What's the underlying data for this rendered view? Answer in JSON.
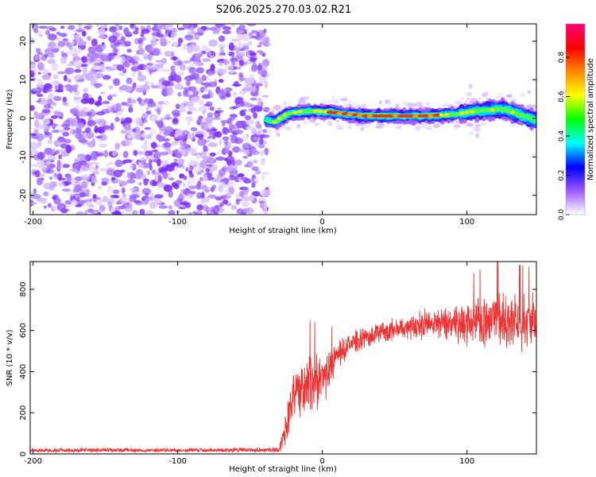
{
  "figure_title": "S206.2025.270.03.02.R21",
  "chart_data": [
    {
      "type": "heatmap",
      "title": "S206.2025.270.03.02.R21",
      "xlabel": "Height of straight line (km)",
      "ylabel": "Frequency (Hz)",
      "xlim": [
        -202,
        148
      ],
      "ylim": [
        -25,
        24.5
      ],
      "xticks": [
        -200,
        -100,
        0,
        100
      ],
      "yticks": [
        -20,
        -10,
        0,
        10,
        20
      ],
      "xtick_labels": [
        "-200",
        "-100",
        "0",
        "100"
      ],
      "ytick_labels": [
        "-20",
        "-10",
        "0",
        "10",
        "20"
      ],
      "noise_region_x": [
        -202,
        -38
      ],
      "signal_onset_x": -38,
      "signal_band_frequency_hz": 0.5,
      "signal_band_points": [
        {
          "x": -38,
          "y": -0.5
        },
        {
          "x": -33,
          "y": -1.0
        },
        {
          "x": -25,
          "y": 1.0
        },
        {
          "x": -15,
          "y": 1.8
        },
        {
          "x": 0,
          "y": 1.8
        },
        {
          "x": 15,
          "y": 1.2
        },
        {
          "x": 30,
          "y": 0.6
        },
        {
          "x": 50,
          "y": 0.6
        },
        {
          "x": 70,
          "y": 0.6
        },
        {
          "x": 90,
          "y": 1.0
        },
        {
          "x": 110,
          "y": 2.0
        },
        {
          "x": 125,
          "y": 2.4
        },
        {
          "x": 140,
          "y": 0.5
        },
        {
          "x": 148,
          "y": -0.8
        }
      ],
      "colorbar": {
        "label": "Normalized spectral amplitude",
        "range": [
          0,
          0.97
        ],
        "ticks": [
          0.0,
          0.2,
          0.4,
          0.6,
          0.8
        ],
        "tick_labels": [
          "0.0",
          "0.2",
          "0.4",
          "0.6",
          "0.8"
        ],
        "colormap": [
          "#ffffff",
          "#9b59ff",
          "#0000ff",
          "#00ffff",
          "#00ff00",
          "#ffff00",
          "#ff8800",
          "#ff0000",
          "#ff0077"
        ]
      }
    },
    {
      "type": "line",
      "xlabel": "Height of straight line (km)",
      "ylabel": "SNR (10 * v/v)",
      "xlim": [
        -202,
        148
      ],
      "ylim": [
        0,
        935
      ],
      "xticks": [
        -200,
        -100,
        0,
        100
      ],
      "yticks": [
        0,
        200,
        400,
        600,
        800
      ],
      "xtick_labels": [
        "-200",
        "-100",
        "0",
        "100"
      ],
      "ytick_labels": [
        "0",
        "200",
        "400",
        "600",
        "800"
      ],
      "series": [
        {
          "name": "SNR",
          "color": "#ee3333",
          "envelope": [
            {
              "x": -202,
              "mean": 18,
              "spread": 12
            },
            {
              "x": -100,
              "mean": 18,
              "spread": 12
            },
            {
              "x": -30,
              "mean": 20,
              "spread": 14
            },
            {
              "x": -25,
              "mean": 120,
              "spread": 110
            },
            {
              "x": -20,
              "mean": 280,
              "spread": 150
            },
            {
              "x": -10,
              "mean": 330,
              "spread": 180
            },
            {
              "x": 0,
              "mean": 360,
              "spread": 150
            },
            {
              "x": 10,
              "mean": 470,
              "spread": 80
            },
            {
              "x": 20,
              "mean": 540,
              "spread": 60
            },
            {
              "x": 40,
              "mean": 590,
              "spread": 60
            },
            {
              "x": 60,
              "mean": 620,
              "spread": 70
            },
            {
              "x": 80,
              "mean": 640,
              "spread": 90
            },
            {
              "x": 100,
              "mean": 640,
              "spread": 130
            },
            {
              "x": 120,
              "mean": 650,
              "spread": 170
            },
            {
              "x": 148,
              "mean": 650,
              "spread": 150
            }
          ]
        }
      ]
    }
  ]
}
